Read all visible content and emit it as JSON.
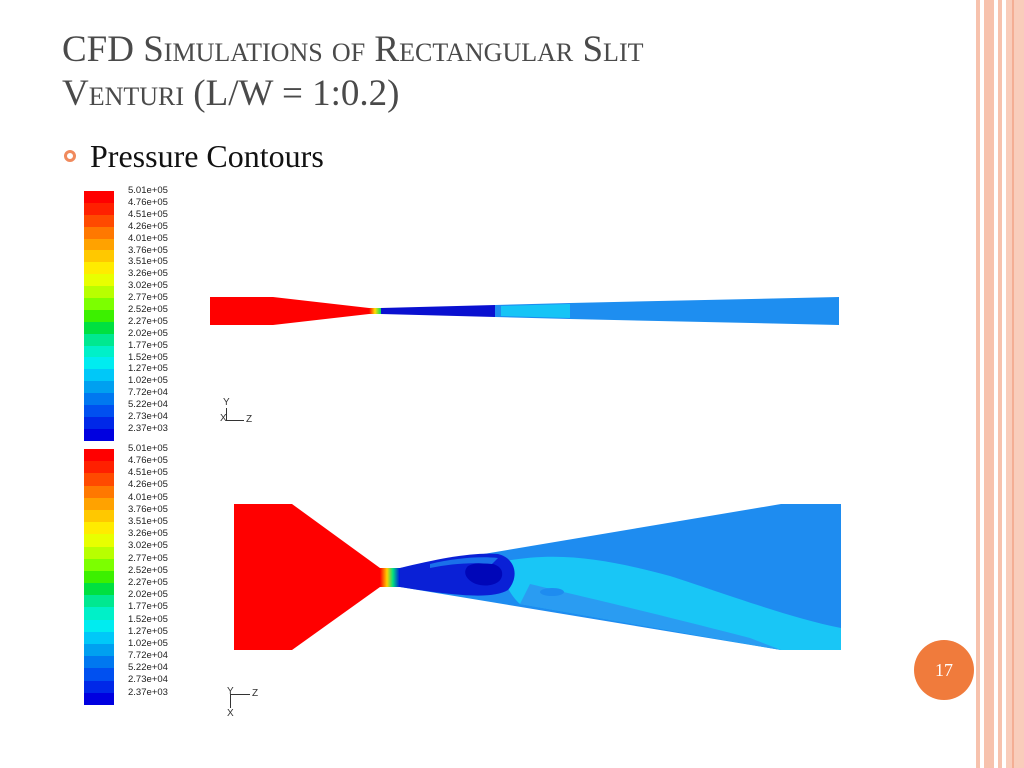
{
  "slide": {
    "title_line1": "CFD Simulations of Rectangular Slit",
    "title_line2": "Venturi (L/W = 1:0.2)",
    "bullet": "Pressure Contours",
    "page_number": "17"
  },
  "legend": {
    "labels": [
      "5.01e+05",
      "4.76e+05",
      "4.51e+05",
      "4.26e+05",
      "4.01e+05",
      "3.76e+05",
      "3.51e+05",
      "3.26e+05",
      "3.02e+05",
      "2.77e+05",
      "2.52e+05",
      "2.27e+05",
      "2.02e+05",
      "1.77e+05",
      "1.52e+05",
      "1.27e+05",
      "1.02e+05",
      "7.72e+04",
      "5.22e+04",
      "2.73e+04",
      "2.37e+03"
    ],
    "colors": [
      "#ff0000",
      "#ff2000",
      "#ff4a00",
      "#ff7800",
      "#ffa200",
      "#ffc800",
      "#ffeb00",
      "#e8ff00",
      "#b8ff00",
      "#7cff00",
      "#3cf000",
      "#00e040",
      "#00e890",
      "#00f0c8",
      "#00ecf0",
      "#00c8f8",
      "#00a0f0",
      "#0078f0",
      "#0050f0",
      "#0028e8",
      "#0000e0"
    ]
  },
  "axes_top": {
    "vertical": "Y",
    "horizontal": "Z",
    "origin": "X"
  },
  "axes_bottom": {
    "vertical": "X",
    "horizontal": "Z",
    "origin": "Y"
  },
  "colors": {
    "high": "#ff0000",
    "throat_low": "#0000cc",
    "mid_blue": "#1e88f0",
    "light_blue": "#19c8f5",
    "accent": "#f07b3c"
  }
}
